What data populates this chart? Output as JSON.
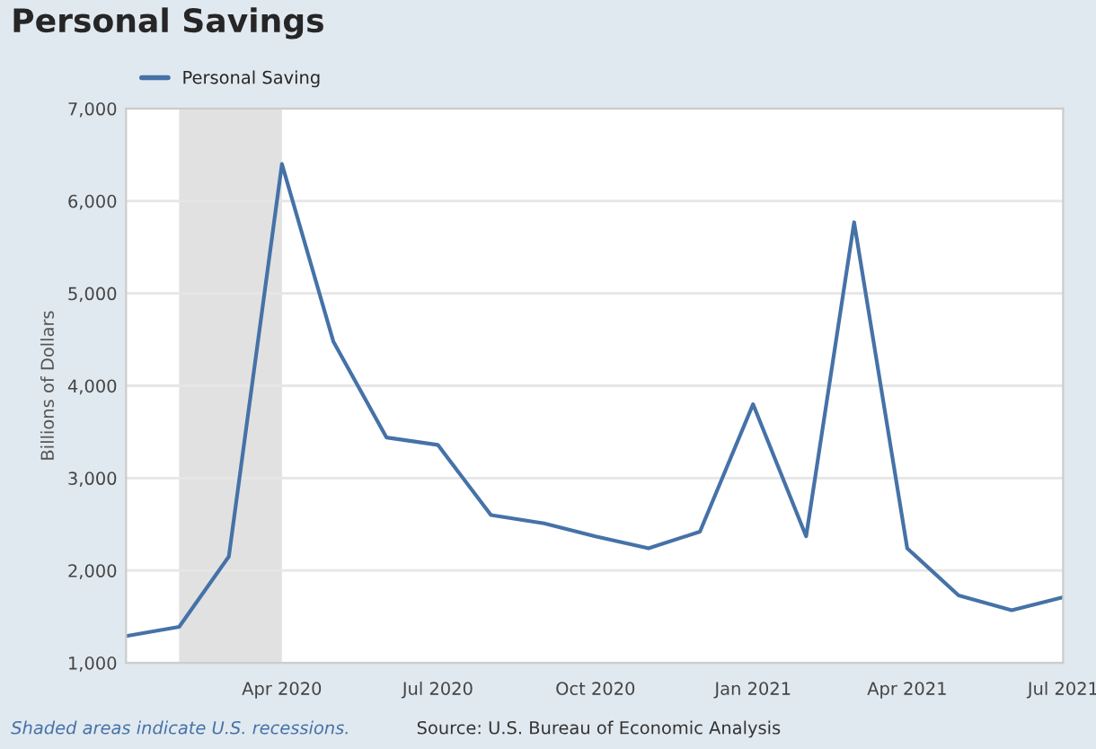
{
  "chart_data": {
    "type": "line",
    "title": "Personal Savings",
    "ylabel": "Billions of Dollars",
    "x": [
      "2020-01",
      "2020-02",
      "2020-03",
      "2020-04",
      "2020-05",
      "2020-06",
      "2020-07",
      "2020-08",
      "2020-09",
      "2020-10",
      "2020-11",
      "2020-12",
      "2021-01",
      "2021-02",
      "2021-03",
      "2021-04",
      "2021-05",
      "2021-06",
      "2021-07"
    ],
    "series": [
      {
        "name": "Personal Saving",
        "color": "#4572a7",
        "values": [
          1290,
          1390,
          2150,
          6400,
          4480,
          3440,
          3360,
          2600,
          2510,
          2370,
          2240,
          2420,
          3800,
          2370,
          5770,
          2240,
          1730,
          1570,
          1710
        ]
      }
    ],
    "xlim": [
      "2020-01",
      "2021-07"
    ],
    "xticks": [
      {
        "value": "2020-04",
        "label": "Apr 2020"
      },
      {
        "value": "2020-07",
        "label": "Jul 2020"
      },
      {
        "value": "2020-10",
        "label": "Oct 2020"
      },
      {
        "value": "2021-01",
        "label": "Jan 2021"
      },
      {
        "value": "2021-04",
        "label": "Apr 2021"
      },
      {
        "value": "2021-07",
        "label": "Jul 2021"
      }
    ],
    "ylim": [
      1000,
      7000
    ],
    "yticks": [
      {
        "value": 1000,
        "label": "1,000"
      },
      {
        "value": 2000,
        "label": "2,000"
      },
      {
        "value": 3000,
        "label": "3,000"
      },
      {
        "value": 4000,
        "label": "4,000"
      },
      {
        "value": 5000,
        "label": "5,000"
      },
      {
        "value": 6000,
        "label": "6,000"
      },
      {
        "value": 7000,
        "label": "7,000"
      }
    ],
    "bands": [
      {
        "axis": "x",
        "from": "2020-02",
        "to": "2020-04",
        "color": "#e1e1e1"
      }
    ],
    "grid": "y",
    "legend": "top left",
    "line_style": "solid",
    "marker": "none",
    "annotations": [
      "Shaded areas indicate U.S. recessions.",
      "Source: U.S. Bureau of Economic Analysis"
    ]
  }
}
